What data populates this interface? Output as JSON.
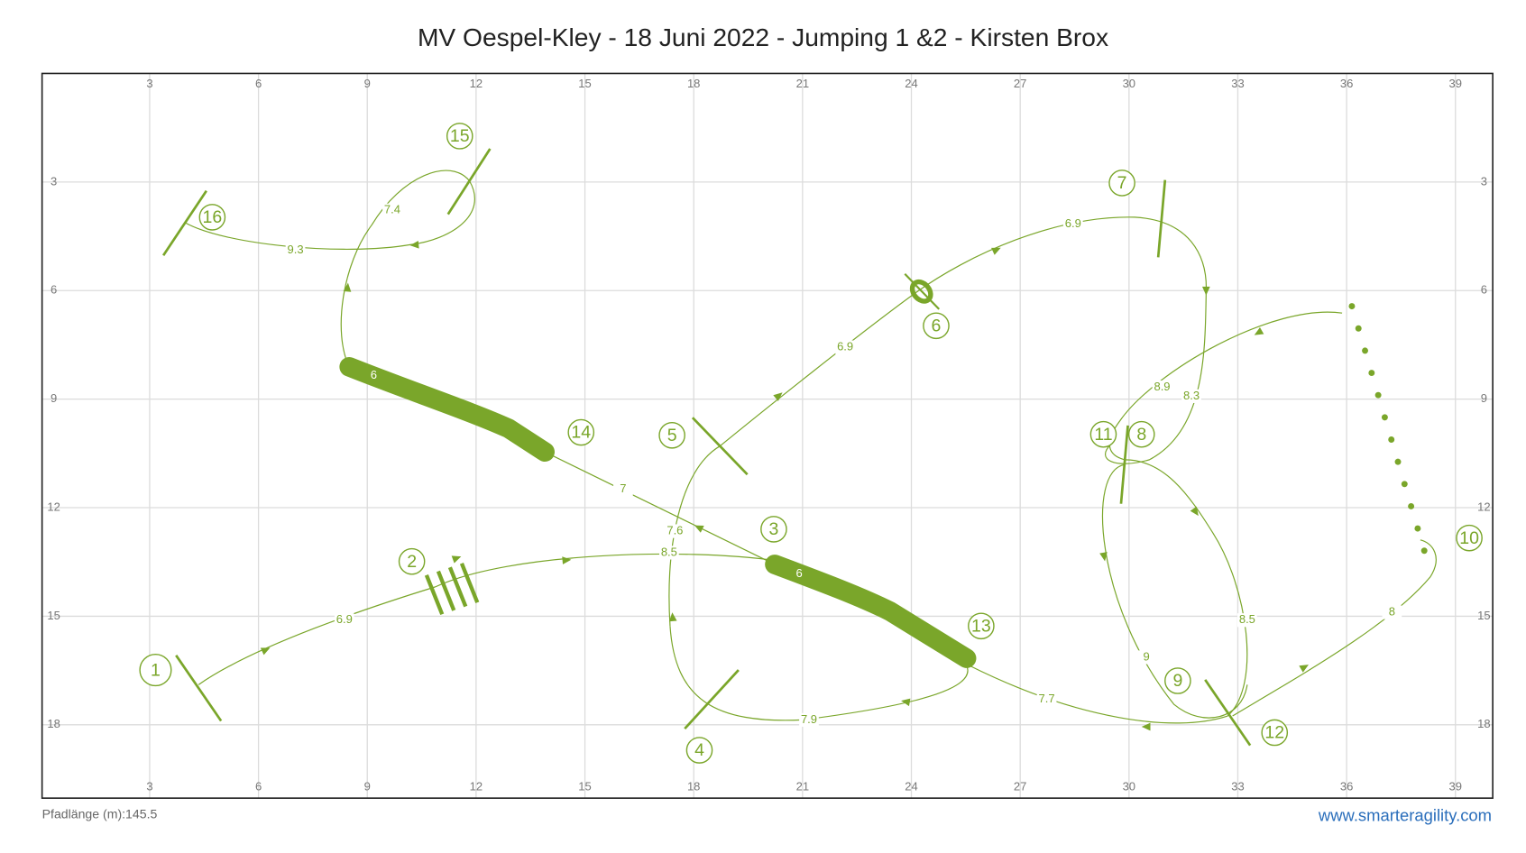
{
  "header": {
    "title": "MV Oespel-Kley - 18 Juni 2022 - Jumping 1 &2 - Kirsten Brox"
  },
  "axes": {
    "x_ticks": [
      3,
      6,
      9,
      12,
      15,
      18,
      21,
      24,
      27,
      30,
      33,
      36,
      39
    ],
    "y_ticks": [
      3,
      6,
      9,
      12,
      15,
      18
    ]
  },
  "obstacle_numbers": [
    "1",
    "2",
    "3",
    "4",
    "5",
    "6",
    "7",
    "8",
    "9",
    "10",
    "11",
    "12",
    "13",
    "14",
    "15",
    "16"
  ],
  "tunnel_labels": [
    "6",
    "6"
  ],
  "distances": [
    "6.9",
    "8.5",
    "7.6",
    "6.9",
    "6.9",
    "8.3",
    "8.9",
    "9",
    "8.5",
    "8",
    "7.7",
    "7.9",
    "7",
    "7.4",
    "9.3"
  ],
  "footer": {
    "path_length": "Pfadlänge (m):145.5",
    "url": "www.smarteragility.com"
  }
}
